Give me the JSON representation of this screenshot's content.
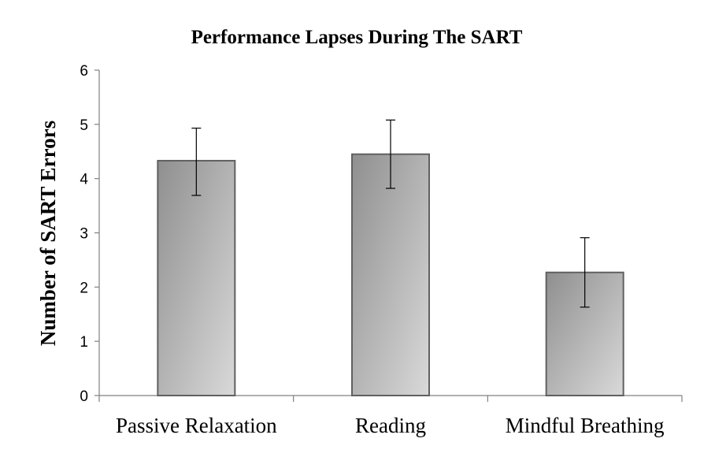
{
  "chart_data": {
    "type": "bar",
    "title": "Performance Lapses During The SART",
    "xlabel": "",
    "ylabel": "Number of SART Errors",
    "categories": [
      "Passive Relaxation",
      "Reading",
      "Mindful Breathing"
    ],
    "values": [
      4.33,
      4.45,
      2.27
    ],
    "error_low": [
      3.69,
      3.82,
      1.63
    ],
    "error_high": [
      4.93,
      5.08,
      2.91
    ],
    "ylim": [
      0,
      6
    ],
    "yticks": [
      "0",
      "1",
      "2",
      "3",
      "4",
      "5",
      "6"
    ],
    "grid": false,
    "legend": "none",
    "bar_fill_dark": "#8f8f8f",
    "bar_fill_light": "#d9d9d9",
    "bar_stroke": "#606060"
  }
}
